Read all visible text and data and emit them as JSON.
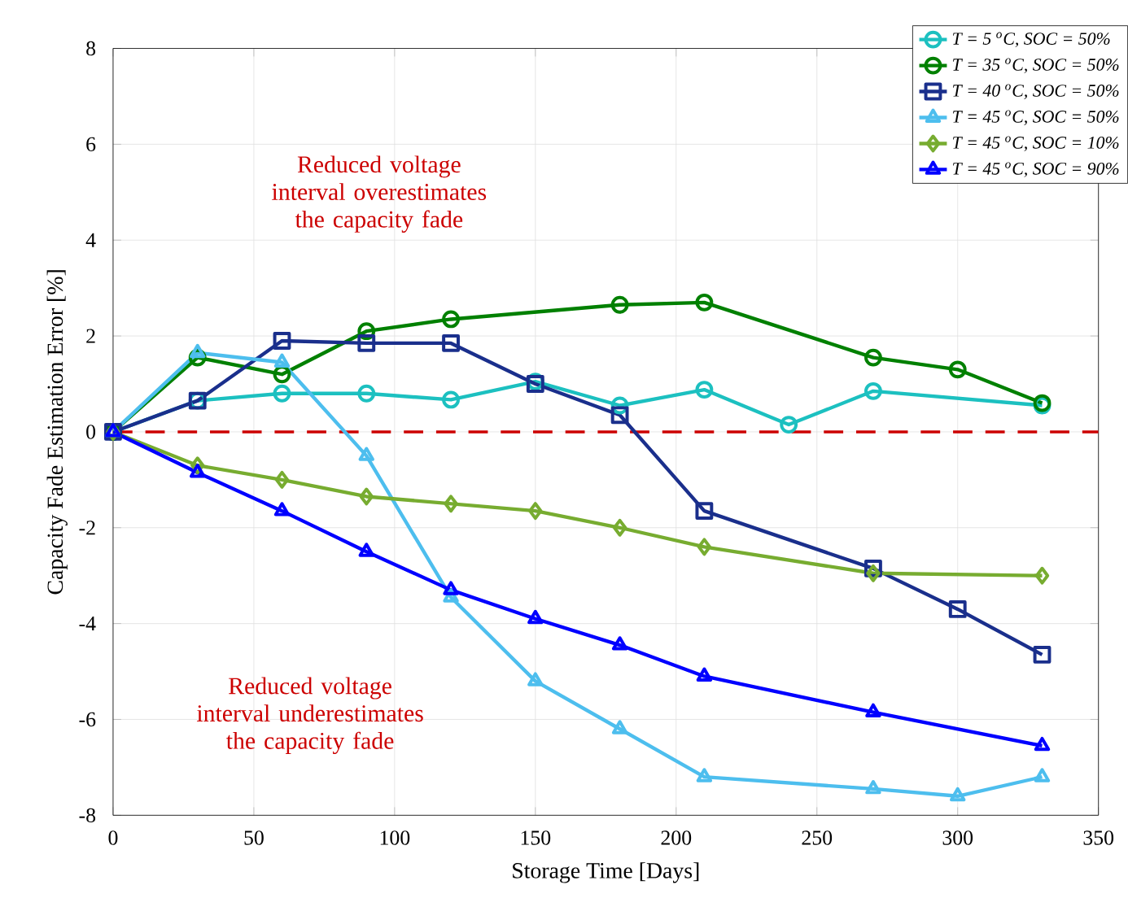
{
  "chart_data": {
    "type": "line",
    "xlabel": "Storage Time [Days]",
    "ylabel": "Capacity Fade Estimation Error [%]",
    "xlim": [
      0,
      350
    ],
    "xticks": [
      0,
      50,
      100,
      150,
      200,
      250,
      300,
      350
    ],
    "ylim": [
      -8,
      8
    ],
    "yticks": [
      -8,
      -6,
      -4,
      -2,
      0,
      2,
      4,
      6,
      8
    ],
    "grid": true,
    "legend": "top right",
    "line_style": "solid",
    "ref_lines": [
      {
        "axis": "y",
        "value": 0,
        "color": "#cc0000",
        "line_style": "dashed"
      }
    ],
    "annotations": [
      "Reduced voltage interval overestimates the capacity fade",
      "Reduced voltage interval underestimates the capacity fade"
    ],
    "series": [
      {
        "name": "T = 5 $^{o}$C, SOC = 50%",
        "color": "#1cc0c0",
        "marker": "circle",
        "x": [
          0,
          30,
          60,
          90,
          120,
          150,
          180,
          210,
          240,
          270,
          330
        ],
        "values": [
          0,
          0.65,
          0.8,
          0.8,
          0.67,
          1.05,
          0.55,
          0.88,
          0.15,
          0.85,
          0.55
        ]
      },
      {
        "name": "T = 35 $^{o}$C, SOC = 50%",
        "color": "#008000",
        "marker": "circle",
        "x": [
          0,
          30,
          60,
          90,
          120,
          180,
          210,
          270,
          300,
          330
        ],
        "values": [
          0,
          1.55,
          1.2,
          2.1,
          2.35,
          2.65,
          2.7,
          1.55,
          1.3,
          0.6
        ]
      },
      {
        "name": "T = 40 $^{o}$C, SOC = 50%",
        "color": "#1a2f8c",
        "marker": "square",
        "x": [
          0,
          30,
          60,
          90,
          120,
          150,
          180,
          210,
          270,
          300,
          330
        ],
        "values": [
          0,
          0.65,
          1.9,
          1.85,
          1.85,
          1.0,
          0.35,
          -1.65,
          -2.85,
          -3.7,
          -4.65
        ]
      },
      {
        "name": "T = 45 $^{o}$C, SOC = 50%",
        "color": "#4dbeee",
        "marker": "triangle",
        "x": [
          0,
          30,
          60,
          90,
          120,
          150,
          180,
          210,
          270,
          300,
          330
        ],
        "values": [
          0,
          1.65,
          1.45,
          -0.5,
          -3.45,
          -5.2,
          -6.2,
          -7.2,
          -7.45,
          -7.6,
          -7.2
        ]
      },
      {
        "name": "T = 45 $^{o}$C, SOC = 10%",
        "color": "#77ac30",
        "marker": "diamond",
        "x": [
          0,
          30,
          60,
          90,
          120,
          150,
          180,
          210,
          270,
          330
        ],
        "values": [
          0,
          -0.7,
          -1.0,
          -1.35,
          -1.5,
          -1.65,
          -2.0,
          -2.4,
          -2.95,
          -3.0
        ]
      },
      {
        "name": "T = 45 $^{o}$C, SOC = 90%",
        "color": "#0000ff",
        "marker": "triangle",
        "x": [
          0,
          30,
          60,
          90,
          120,
          150,
          180,
          210,
          270,
          330
        ],
        "values": [
          0,
          -0.85,
          -1.65,
          -2.5,
          -3.3,
          -3.9,
          -4.45,
          -5.1,
          -5.85,
          -6.55
        ]
      }
    ]
  }
}
